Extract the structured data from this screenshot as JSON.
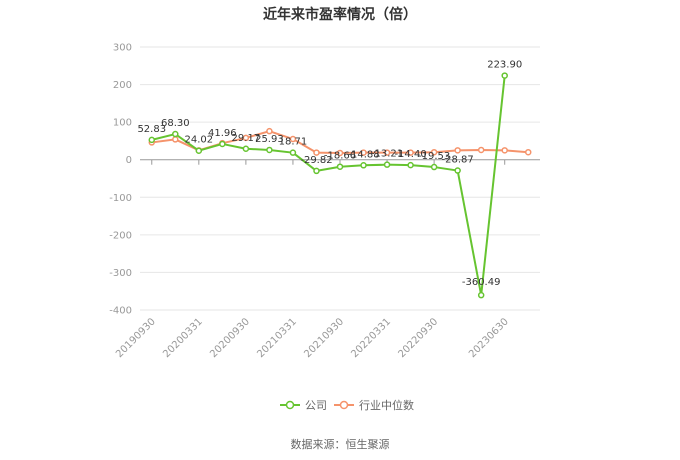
{
  "title": "近年来市盈率情况（倍）",
  "source": "数据来源：恒生聚源",
  "colors": {
    "company": "#66c430",
    "industry": "#f5936b",
    "grid": "#e6e6e6",
    "axis": "#999999"
  },
  "chart_data": {
    "type": "line",
    "ylim": [
      -400,
      300
    ],
    "yticks": [
      300,
      200,
      100,
      0,
      -100,
      -200,
      -300,
      -400
    ],
    "x": [
      "20190930",
      "20191231",
      "20200331",
      "20200630",
      "20200930",
      "20201231",
      "20210331",
      "20210630",
      "20210930",
      "20211231",
      "20220331",
      "20220630",
      "20220930",
      "20221230",
      "20230331",
      "20230630",
      "20230930"
    ],
    "xtick_labels": [
      "20190930",
      "20200331",
      "20200930",
      "20210331",
      "20210930",
      "20220331",
      "20220930",
      "20230630"
    ],
    "legend_position": "bottom",
    "series": [
      {
        "name": "公司",
        "color": "#66c430",
        "values": [
          52.83,
          68.3,
          24.02,
          41.96,
          29.17,
          25.93,
          18.71,
          -29.82,
          -18.66,
          -14.88,
          -13.21,
          -14.4,
          -19.53,
          -28.87,
          -360.49,
          223.9,
          null
        ],
        "labels": [
          "52.83",
          "68.30",
          "24.02",
          "41.96",
          "29.17",
          "25.93",
          "18.71",
          "-29.82",
          "-18.66",
          "-14.88",
          "-13.21",
          "-14.40",
          "-19.53",
          "-28.87",
          "-360.49",
          "223.90",
          ""
        ]
      },
      {
        "name": "行业中位数",
        "color": "#f5936b",
        "values": [
          46,
          54,
          25,
          44,
          58,
          76,
          55,
          19,
          18,
          19,
          19,
          19,
          20,
          25,
          26,
          25,
          20
        ]
      }
    ]
  }
}
